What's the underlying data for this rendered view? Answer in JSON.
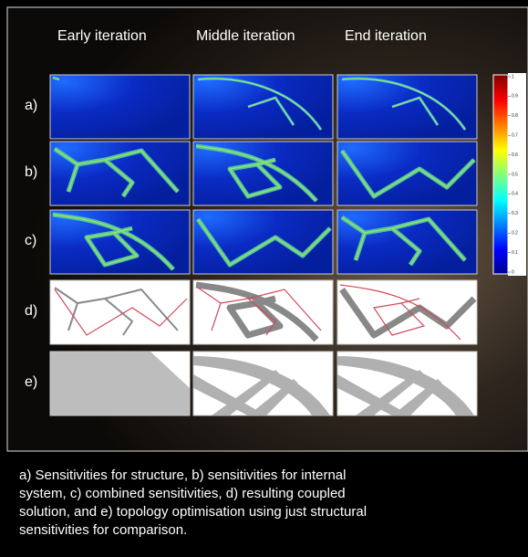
{
  "figure": {
    "columns": [
      "Early iteration",
      "Middle iteration",
      "End iteration"
    ],
    "rows": [
      "a)",
      "b)",
      "c)",
      "d)",
      "e)"
    ],
    "colorbar_ticks": [
      "1",
      "0.9",
      "0.8",
      "0.7",
      "0.6",
      "0.5",
      "0.4",
      "0.3",
      "0.2",
      "0.1",
      "0"
    ],
    "caption": [
      "a) Sensitivities for structure, b) sensitivities for internal",
      "system, c) combined sensitivities, d) resulting coupled",
      "solution, and e) topology optimisation using just structural",
      "sensitivities for comparison."
    ]
  }
}
